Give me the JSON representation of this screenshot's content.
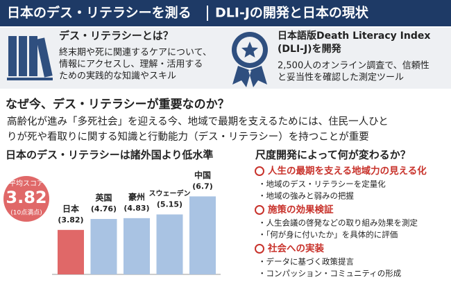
{
  "header": {
    "title": "日本のデス・リテラシーを測る",
    "subtitle": "DLI-Jの開発と日本の現状"
  },
  "panels": [
    {
      "title": [
        "デス・リテラシーとは？"
      ],
      "body": [
        "終末期や死に関連するケアについて、",
        "情報にアクセスし、理解・活用する",
        "ための実践的な知識やスキル"
      ]
    },
    {
      "title": [
        "日本語版Death Literacy Index",
        "(DLI-J)を開発"
      ],
      "body": [
        "2,500人のオンライン調査で、信頼性",
        "と妥当性を確認した測定ツール"
      ]
    }
  ],
  "why": {
    "title": "なぜ今、デス・リテラシーが重要なのか？",
    "body": [
      "高齢化が進み「多死社会」を迎える今、地域で最期を支えるためには、住民一人ひと",
      "りが死や看取りに関する知識と行動能力（デス・リテラシー）を持つことが重要"
    ]
  },
  "chart": {
    "title": "日本のデス・リテラシーは諸外国より低水準",
    "badge": {
      "label": "平均スコア",
      "value": "3.82",
      "note": "(10点満点)"
    },
    "categories": [
      "日本",
      "英国",
      "豪州",
      "スウェーデン",
      "中国"
    ],
    "values": [
      3.82,
      4.76,
      4.83,
      5.15,
      6.7
    ],
    "value_labels": [
      "(3.82)",
      "(4.76)",
      "(4.83)",
      "(5.15)",
      "(6.7)"
    ],
    "colors": [
      "#e06868",
      "#a9c3e3",
      "#a9c3e3",
      "#a9c3e3",
      "#a9c3e3"
    ]
  },
  "changes": {
    "title": "尺度開発によって何が変わるか？",
    "items": [
      {
        "heading": "人生の最期を支える地域力の見える化",
        "points": [
          "・地域のデス・リテラシーを定量化",
          "・地域の強みと弱みの把握"
        ]
      },
      {
        "heading": "施策の効果検証",
        "points": [
          "・人生会議の啓発などの取り組み効果を測定",
          "・「何が身に付いたか」を具体的に評価"
        ]
      },
      {
        "heading": "社会への実装",
        "points": [
          "・データに基づく政策提言",
          "・コンパッション・コミュニティの形成"
        ]
      }
    ]
  }
}
